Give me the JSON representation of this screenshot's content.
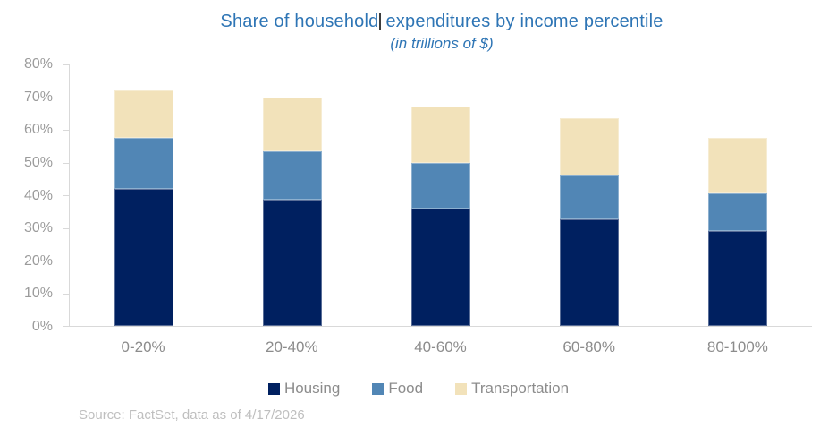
{
  "title": {
    "part1": "Share of household",
    "part2": "expenditures by income percentile",
    "full": "Share of household expenditures by income percentile",
    "subtitle": "(in trillions of $)"
  },
  "source": "Source: FactSet, data as of 4/17/2026",
  "colors": {
    "housing": "#002060",
    "food": "#5186b5",
    "transportation": "#f2e2ba",
    "title_text": "#2e75b5",
    "axis_text": "#9b9b9b",
    "axis_line": "#d9d9d9",
    "legend_text": "#8c8c8c",
    "source_text": "#bfbfbf"
  },
  "chart_data": {
    "type": "bar",
    "stacked": true,
    "title": "Share of household expenditures by income percentile",
    "subtitle": "(in trillions of $)",
    "xlabel": "",
    "ylabel": "",
    "categories": [
      "0-20%",
      "20-40%",
      "40-60%",
      "60-80%",
      "80-100%"
    ],
    "series": [
      {
        "name": "Housing",
        "color_key": "housing",
        "values": [
          42,
          38.5,
          36,
          32.5,
          29
        ]
      },
      {
        "name": "Food",
        "color_key": "food",
        "values": [
          15.5,
          15,
          14,
          13.5,
          11.5
        ]
      },
      {
        "name": "Transportation",
        "color_key": "transportation",
        "values": [
          14.5,
          16.5,
          17,
          17.5,
          17
        ]
      }
    ],
    "stack_totals": [
      72,
      70,
      67,
      63.5,
      57.5
    ],
    "ylim": [
      0,
      80
    ],
    "yticks": [
      "0%",
      "10%",
      "20%",
      "30%",
      "40%",
      "50%",
      "60%",
      "70%",
      "80%"
    ],
    "grid": false,
    "legend_position": "bottom"
  }
}
